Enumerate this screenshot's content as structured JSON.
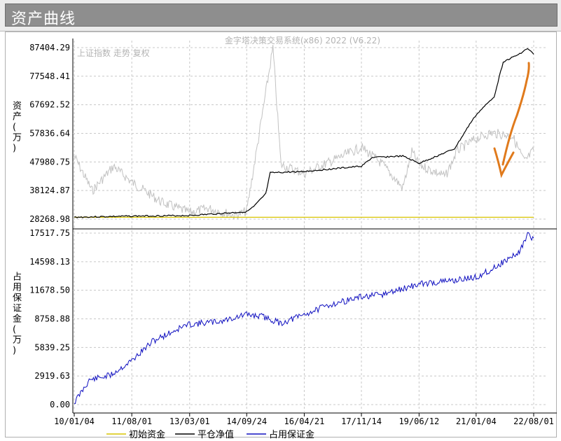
{
  "window": {
    "title": "资产曲线"
  },
  "watermark": "金字塔决策交易系统(x86) 2022 (V6.22)",
  "upper_series_label": "上证指数 走势 复权",
  "colors": {
    "initial_capital": "#d8c400",
    "equity": "#000000",
    "margin": "#1010c0",
    "index": "#c2c2c2",
    "annotation": "#e07a1c"
  },
  "chart_data": [
    {
      "type": "line",
      "title": "",
      "ylabel": "资产(万)",
      "ylim": [
        28268.98,
        87404.29
      ],
      "yticks": [
        "87404.29",
        "77548.41",
        "67692.52",
        "57836.64",
        "47980.75",
        "38124.87",
        "28268.98"
      ],
      "xlim": [
        "10/01/04",
        "22/08/01"
      ],
      "grid": true,
      "series": [
        {
          "name": "初始资金",
          "points": [
            [
              "10/01/04",
              28900
            ],
            [
              "22/08/01",
              28900
            ]
          ]
        },
        {
          "name": "平仓净值",
          "points": [
            [
              "10/01/04",
              28900
            ],
            [
              "11/08/01",
              29300
            ],
            [
              "13/03/01",
              29500
            ],
            [
              "14/09/24",
              30800
            ],
            [
              "14/12/01",
              32500
            ],
            [
              "15/04/01",
              37000
            ],
            [
              "15/05/15",
              44200
            ],
            [
              "16/04/21",
              44700
            ],
            [
              "17/11/14",
              46500
            ],
            [
              "18/03/01",
              49500
            ],
            [
              "19/01/01",
              50000
            ],
            [
              "19/06/12",
              47500
            ],
            [
              "20/06/01",
              52500
            ],
            [
              "20/11/01",
              61000
            ],
            [
              "21/01/04",
              64200
            ],
            [
              "21/07/01",
              70500
            ],
            [
              "21/10/01",
              82500
            ],
            [
              "22/03/01",
              85000
            ],
            [
              "22/06/01",
              87100
            ],
            [
              "22/08/01",
              85100
            ]
          ]
        },
        {
          "name": "上证指数",
          "points": [
            [
              "10/01/04",
              50000
            ],
            [
              "10/07/01",
              38000
            ],
            [
              "11/02/01",
              46500
            ],
            [
              "11/08/01",
              41000
            ],
            [
              "12/06/01",
              34000
            ],
            [
              "13/03/01",
              30500
            ],
            [
              "13/09/01",
              32000
            ],
            [
              "14/06/01",
              29500
            ],
            [
              "14/09/24",
              31000
            ],
            [
              "15/01/01",
              52000
            ],
            [
              "15/06/12",
              87400
            ],
            [
              "15/09/01",
              47000
            ],
            [
              "16/04/21",
              44000
            ],
            [
              "17/11/14",
              53000
            ],
            [
              "18/06/01",
              47500
            ],
            [
              "19/01/01",
              39000
            ],
            [
              "19/04/01",
              51500
            ],
            [
              "19/06/12",
              47000
            ],
            [
              "20/03/01",
              43000
            ],
            [
              "20/07/01",
              52000
            ],
            [
              "21/01/04",
              56000
            ],
            [
              "21/06/01",
              58000
            ],
            [
              "22/01/01",
              57000
            ],
            [
              "22/05/01",
              48000
            ],
            [
              "22/08/01",
              52000
            ]
          ]
        }
      ]
    },
    {
      "type": "line",
      "title": "",
      "ylabel": "占用保证金(万)",
      "ylim": [
        0.0,
        17517.75
      ],
      "yticks": [
        "17517.75",
        "14598.13",
        "11678.50",
        "8758.88",
        "5839.25",
        "2919.63",
        "0.00"
      ],
      "x_tick_labels": [
        "10/01/04",
        "11/08/01",
        "13/03/01",
        "14/09/24",
        "16/04/21",
        "17/11/14",
        "19/06/12",
        "21/01/04",
        "22/08/01"
      ],
      "grid": true,
      "series": [
        {
          "name": "占用保证金",
          "points": [
            [
              "10/01/04",
              200
            ],
            [
              "10/06/01",
              2500
            ],
            [
              "11/01/01",
              3000
            ],
            [
              "11/08/01",
              4500
            ],
            [
              "12/03/01",
              6500
            ],
            [
              "13/01/01",
              8000
            ],
            [
              "13/03/01",
              8200
            ],
            [
              "14/01/01",
              8500
            ],
            [
              "14/09/24",
              9200
            ],
            [
              "15/03/01",
              9000
            ],
            [
              "15/09/01",
              8300
            ],
            [
              "16/04/21",
              9200
            ],
            [
              "17/01/01",
              10200
            ],
            [
              "17/11/14",
              11000
            ],
            [
              "18/06/01",
              11200
            ],
            [
              "19/06/12",
              12300
            ],
            [
              "20/06/01",
              12700
            ],
            [
              "21/01/04",
              13000
            ],
            [
              "21/06/01",
              13800
            ],
            [
              "22/03/01",
              15500
            ],
            [
              "22/06/01",
              17300
            ],
            [
              "22/08/01",
              17000
            ]
          ]
        }
      ]
    }
  ],
  "legend": [
    {
      "label": "初始资金",
      "color": "#d8c400"
    },
    {
      "label": "平仓净值",
      "color": "#000000"
    },
    {
      "label": "占用保证金",
      "color": "#1010c0"
    }
  ]
}
